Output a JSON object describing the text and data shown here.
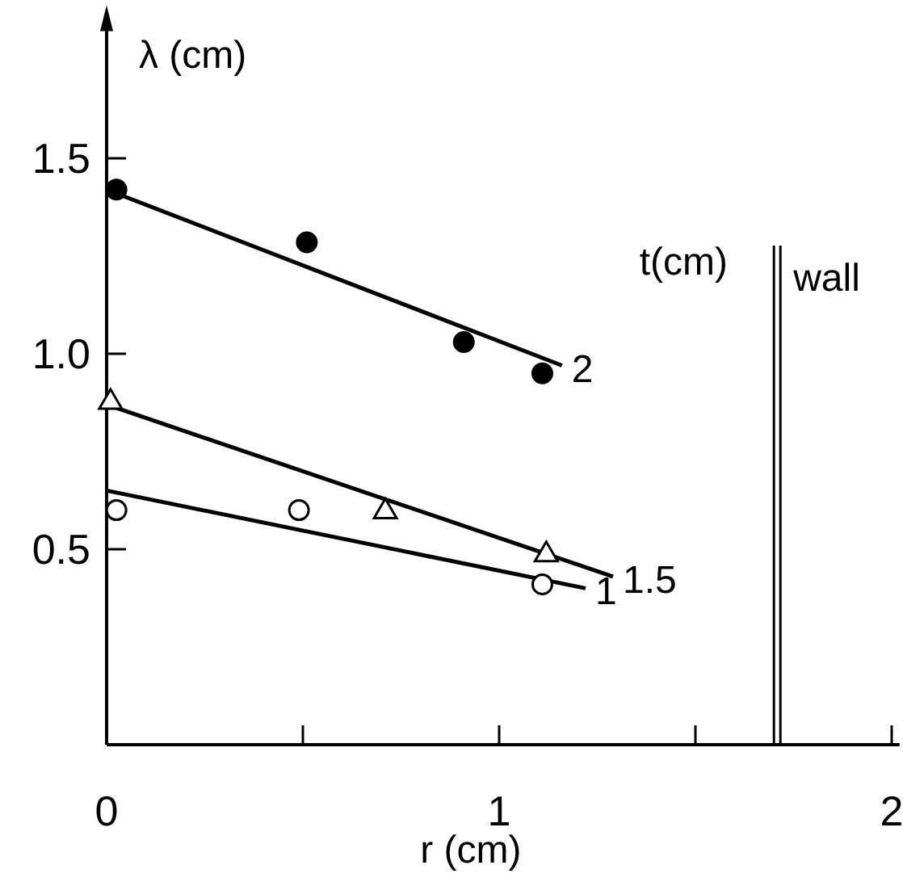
{
  "chart_data": {
    "type": "scatter",
    "xlabel": "r (cm)",
    "ylabel": "λ (cm)",
    "legend_title": "t(cm)",
    "xlim": [
      0,
      2.02
    ],
    "ylim": [
      0,
      1.85
    ],
    "xticks": [
      0,
      {
        "value": 0.5,
        "label": null
      },
      1,
      {
        "value": 1.5,
        "label": null
      },
      2
    ],
    "yticks": [
      0.5,
      {
        "value": 1,
        "label": "1.0"
      },
      1.5
    ],
    "grid": false,
    "series": [
      {
        "marker": "circle",
        "color": "#000000",
        "x": [
          0.025,
          0.51,
          0.91,
          1.11
        ],
        "values": [
          1.42,
          1.285,
          1.03,
          0.95
        ]
      },
      {
        "marker": "triangle",
        "color": "#ffffff",
        "x": [
          0.01,
          0.71,
          1.12
        ],
        "values": [
          0.88,
          0.6,
          0.49
        ]
      },
      {
        "marker": "circle",
        "color": "#ffffff",
        "x": [
          0.025,
          0.49,
          1.11
        ],
        "values": [
          0.6,
          0.6,
          0.41
        ]
      },
      {
        "type": "line",
        "name": "2",
        "color": "#000000",
        "x": [
          0,
          1.16
        ],
        "values": [
          1.42,
          0.97
        ]
      },
      {
        "type": "line",
        "name": "1.5",
        "color": "#000000",
        "x": [
          0,
          1.29
        ],
        "values": [
          0.87,
          0.43
        ]
      },
      {
        "type": "line",
        "name": "1",
        "color": "#000000",
        "x": [
          0,
          1.22
        ],
        "values": [
          0.65,
          0.4
        ]
      }
    ],
    "ref_lines": [
      {
        "axis": "x",
        "value": 1.7,
        "label": "wall",
        "color": "#000000"
      }
    ]
  }
}
